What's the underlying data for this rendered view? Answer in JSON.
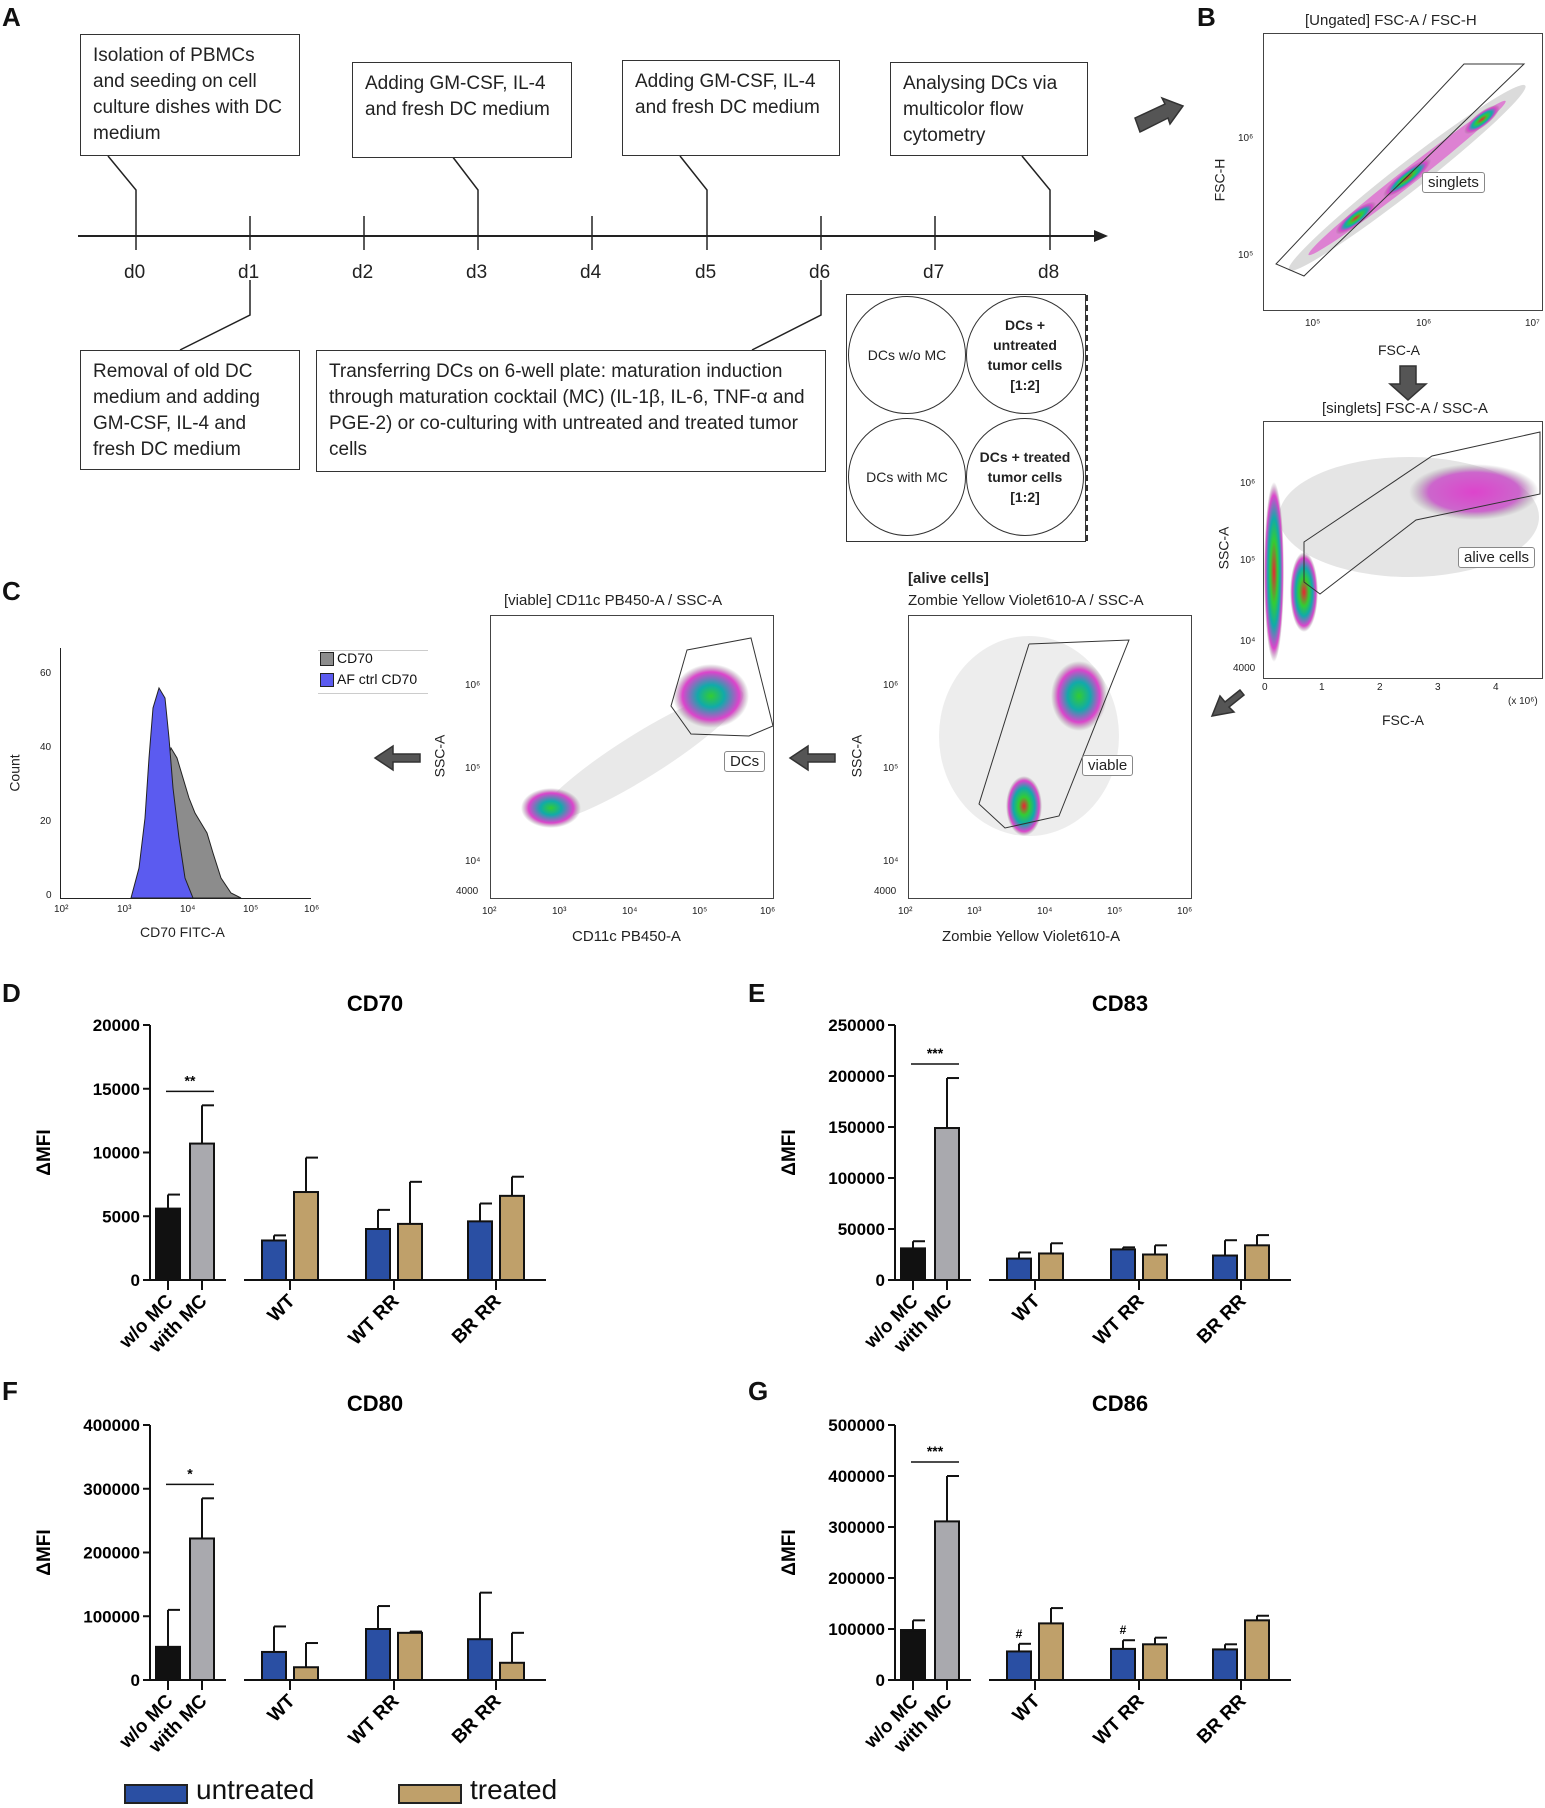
{
  "panels": {
    "A": "A",
    "B": "B",
    "C": "C",
    "D": "D",
    "E": "E",
    "F": "F",
    "G": "G"
  },
  "timeline": {
    "days": [
      "d0",
      "d1",
      "d2",
      "d3",
      "d4",
      "d5",
      "d6",
      "d7",
      "d8"
    ],
    "top_boxes": [
      {
        "text": "Isolation of PBMCs and seeding on cell culture dishes with DC medium",
        "day": "d0"
      },
      {
        "text": "Adding GM-CSF, IL-4 and fresh DC medium",
        "day": "d3"
      },
      {
        "text": "Adding GM-CSF, IL-4 and fresh DC medium",
        "day": "d5"
      },
      {
        "text": "Analysing DCs via multicolor flow cytometry",
        "day": "d8"
      }
    ],
    "bottom_boxes": [
      {
        "text": "Removal of old DC medium and adding GM-CSF, IL-4 and fresh DC medium",
        "day": "d1"
      },
      {
        "text": "Transferring DCs on 6-well plate: maturation induction through maturation cocktail (MC) (IL-1β, IL-6, TNF-α and PGE-2) or co-culturing with untreated and treated tumor cells",
        "day": "d6"
      }
    ],
    "wells": [
      {
        "text": "DCs w/o MC"
      },
      {
        "text": "DCs + untreated tumor cells [1:2]"
      },
      {
        "text": "DCs with MC"
      },
      {
        "text": "DCs + treated tumor cells [1:2]"
      }
    ]
  },
  "flow": {
    "b1": {
      "title": "[Ungated] FSC-A / FSC-H",
      "xlabel": "FSC-A",
      "ylabel": "FSC-H",
      "gate": "singlets",
      "xticks": [
        "10⁵",
        "10⁶",
        "10⁷"
      ],
      "yticks": [
        "10⁶",
        "10⁵"
      ]
    },
    "b2": {
      "title": "[singlets] FSC-A / SSC-A",
      "xlabel": "FSC-A",
      "ylabel": "SSC-A",
      "gate": "alive cells",
      "xticks": [
        "0",
        "1",
        "2",
        "3",
        "4"
      ],
      "xunit": "(x 10⁶)",
      "yticks": [
        "10⁶",
        "10⁵",
        "10⁴",
        "4000"
      ]
    },
    "c3": {
      "title1": "[alive cells]",
      "title2": "Zombie Yellow Violet610-A / SSC-A",
      "xlabel": "Zombie Yellow Violet610-A",
      "ylabel": "SSC-A",
      "gate": "viable",
      "xticks": [
        "10²",
        "10³",
        "10⁴",
        "10⁵",
        "10⁶"
      ],
      "yticks": [
        "10⁶",
        "10⁵",
        "10⁴",
        "4000"
      ]
    },
    "c2": {
      "title": "[viable] CD11c PB450-A / SSC-A",
      "xlabel": "CD11c PB450-A",
      "ylabel": "SSC-A",
      "gate": "DCs",
      "xticks": [
        "10²",
        "10³",
        "10⁴",
        "10⁵",
        "10⁶"
      ],
      "yticks": [
        "10⁶",
        "10⁵",
        "10⁴",
        "4000"
      ]
    },
    "c1": {
      "xlabel": "CD70 FITC-A",
      "ylabel": "Count",
      "legend": [
        "CD70",
        "AF ctrl CD70"
      ],
      "xticks": [
        "10²",
        "10³",
        "10⁴",
        "10⁵",
        "10⁶"
      ],
      "yticks": [
        "60",
        "40",
        "20",
        "0"
      ],
      "colors": {
        "cd70": "#8c8c8c",
        "ctrl": "#5b5bf0"
      }
    }
  },
  "chart_data": [
    {
      "type": "bar",
      "panel": "D",
      "title": "CD70",
      "ylabel": "ΔMFI",
      "ylim": [
        0,
        20000
      ],
      "yticks": [
        "0",
        "5000",
        "10000",
        "15000",
        "20000"
      ],
      "groups": [
        "w/o MC",
        "with MC",
        "WT",
        "WT RR",
        "BR RR"
      ],
      "control": {
        "categories": [
          "w/o MC",
          "with MC"
        ],
        "values": [
          5600,
          10700
        ],
        "errors": [
          1100,
          3000
        ]
      },
      "series": [
        {
          "name": "untreated",
          "values": [
            3100,
            4000,
            4600
          ],
          "errors": [
            400,
            1500,
            1400
          ]
        },
        {
          "name": "treated",
          "values": [
            6900,
            4400,
            6600
          ],
          "errors": [
            2700,
            3300,
            1500
          ]
        }
      ],
      "significance": "**"
    },
    {
      "type": "bar",
      "panel": "E",
      "title": "CD83",
      "ylabel": "ΔMFI",
      "ylim": [
        0,
        250000
      ],
      "yticks": [
        "0",
        "50000",
        "100000",
        "150000",
        "200000",
        "250000"
      ],
      "groups": [
        "w/o MC",
        "with MC",
        "WT",
        "WT RR",
        "BR RR"
      ],
      "control": {
        "categories": [
          "w/o MC",
          "with MC"
        ],
        "values": [
          31000,
          149000
        ],
        "errors": [
          7000,
          49000
        ]
      },
      "series": [
        {
          "name": "untreated",
          "values": [
            21000,
            30000,
            24000
          ],
          "errors": [
            6000,
            2000,
            15000
          ]
        },
        {
          "name": "treated",
          "values": [
            26000,
            25000,
            34000
          ],
          "errors": [
            10000,
            9000,
            10000
          ]
        }
      ],
      "significance": "***"
    },
    {
      "type": "bar",
      "panel": "F",
      "title": "CD80",
      "ylabel": "ΔMFI",
      "ylim": [
        0,
        400000
      ],
      "yticks": [
        "0",
        "100000",
        "200000",
        "300000",
        "400000"
      ],
      "groups": [
        "w/o MC",
        "with MC",
        "WT",
        "WT RR",
        "BR RR"
      ],
      "control": {
        "categories": [
          "w/o MC",
          "with MC"
        ],
        "values": [
          52000,
          222000
        ],
        "errors": [
          58000,
          63000
        ]
      },
      "series": [
        {
          "name": "untreated",
          "values": [
            44000,
            80000,
            64000
          ],
          "errors": [
            40000,
            36000,
            73000
          ]
        },
        {
          "name": "treated",
          "values": [
            20000,
            74000,
            27000
          ],
          "errors": [
            38000,
            2000,
            47000
          ]
        }
      ],
      "significance": "*"
    },
    {
      "type": "bar",
      "panel": "G",
      "title": "CD86",
      "ylabel": "ΔMFI",
      "ylim": [
        0,
        500000
      ],
      "yticks": [
        "0",
        "100000",
        "200000",
        "300000",
        "400000",
        "500000"
      ],
      "groups": [
        "w/o MC",
        "with MC",
        "WT",
        "WT RR",
        "BR RR"
      ],
      "control": {
        "categories": [
          "w/o MC",
          "with MC"
        ],
        "values": [
          98000,
          311000
        ],
        "errors": [
          19000,
          89000
        ]
      },
      "series": [
        {
          "name": "untreated",
          "values": [
            56000,
            61000,
            60000
          ],
          "errors": [
            15000,
            17000,
            10000
          ]
        },
        {
          "name": "treated",
          "values": [
            111000,
            70000,
            117000
          ],
          "errors": [
            30000,
            13000,
            9000
          ]
        }
      ],
      "significance": "***",
      "hash_marks": [
        "#",
        "#"
      ]
    }
  ],
  "legend": {
    "untreated": "untreated",
    "treated": "treated"
  },
  "colors": {
    "untreated": "#2a4fa3",
    "treated": "#bfa06a",
    "wo_mc": "#111111",
    "with_mc": "#a9a9ae"
  }
}
